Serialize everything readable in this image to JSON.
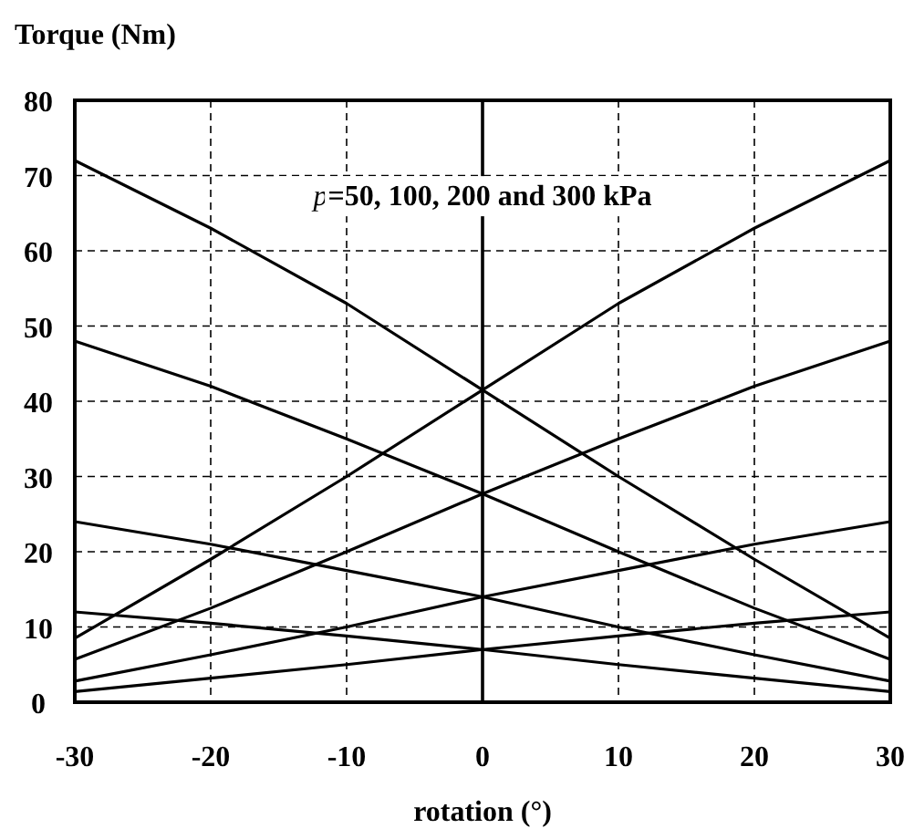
{
  "chart_data": {
    "type": "line",
    "xlabel": "rotation (°)",
    "ylabel": "Torque (Nm)",
    "x": [
      -30,
      -20,
      -10,
      0,
      10,
      20,
      30
    ],
    "series": [
      {
        "color": "#000000",
        "values": [
          8.5,
          19,
          30,
          41.5,
          53,
          63,
          72
        ]
      },
      {
        "color": "#000000",
        "values": [
          72,
          63,
          53,
          41.5,
          30,
          19,
          8.5
        ]
      },
      {
        "color": "#000000",
        "values": [
          5.7,
          12.5,
          20,
          27.7,
          35,
          42,
          48
        ]
      },
      {
        "color": "#000000",
        "values": [
          48,
          42,
          35,
          27.7,
          20,
          12.5,
          5.7
        ]
      },
      {
        "color": "#000000",
        "values": [
          2.8,
          6.3,
          10,
          14,
          17.5,
          21,
          24
        ]
      },
      {
        "color": "#000000",
        "values": [
          24,
          21,
          17.5,
          14,
          10,
          6.3,
          2.8
        ]
      },
      {
        "color": "#000000",
        "values": [
          1.4,
          3.2,
          5,
          7,
          8.8,
          10.5,
          12
        ]
      },
      {
        "color": "#000000",
        "values": [
          12,
          10.5,
          8.8,
          7,
          5,
          3.2,
          1.4
        ]
      }
    ],
    "xlim": [
      -30,
      30
    ],
    "xticks": [
      -30,
      -20,
      -10,
      0,
      10,
      20,
      30
    ],
    "ylim": [
      0,
      80
    ],
    "yticks": [
      0,
      10,
      20,
      30,
      40,
      50,
      60,
      70,
      80
    ],
    "grid": true,
    "marker": "none",
    "line_style": "solid",
    "ref_lines": [
      {
        "axis": "x",
        "value": 0,
        "color": "#000000"
      }
    ],
    "annotations": [
      {
        "text": "p=50, 100, 200 and 300 kPa",
        "x": 0,
        "y": 67.5
      }
    ]
  }
}
